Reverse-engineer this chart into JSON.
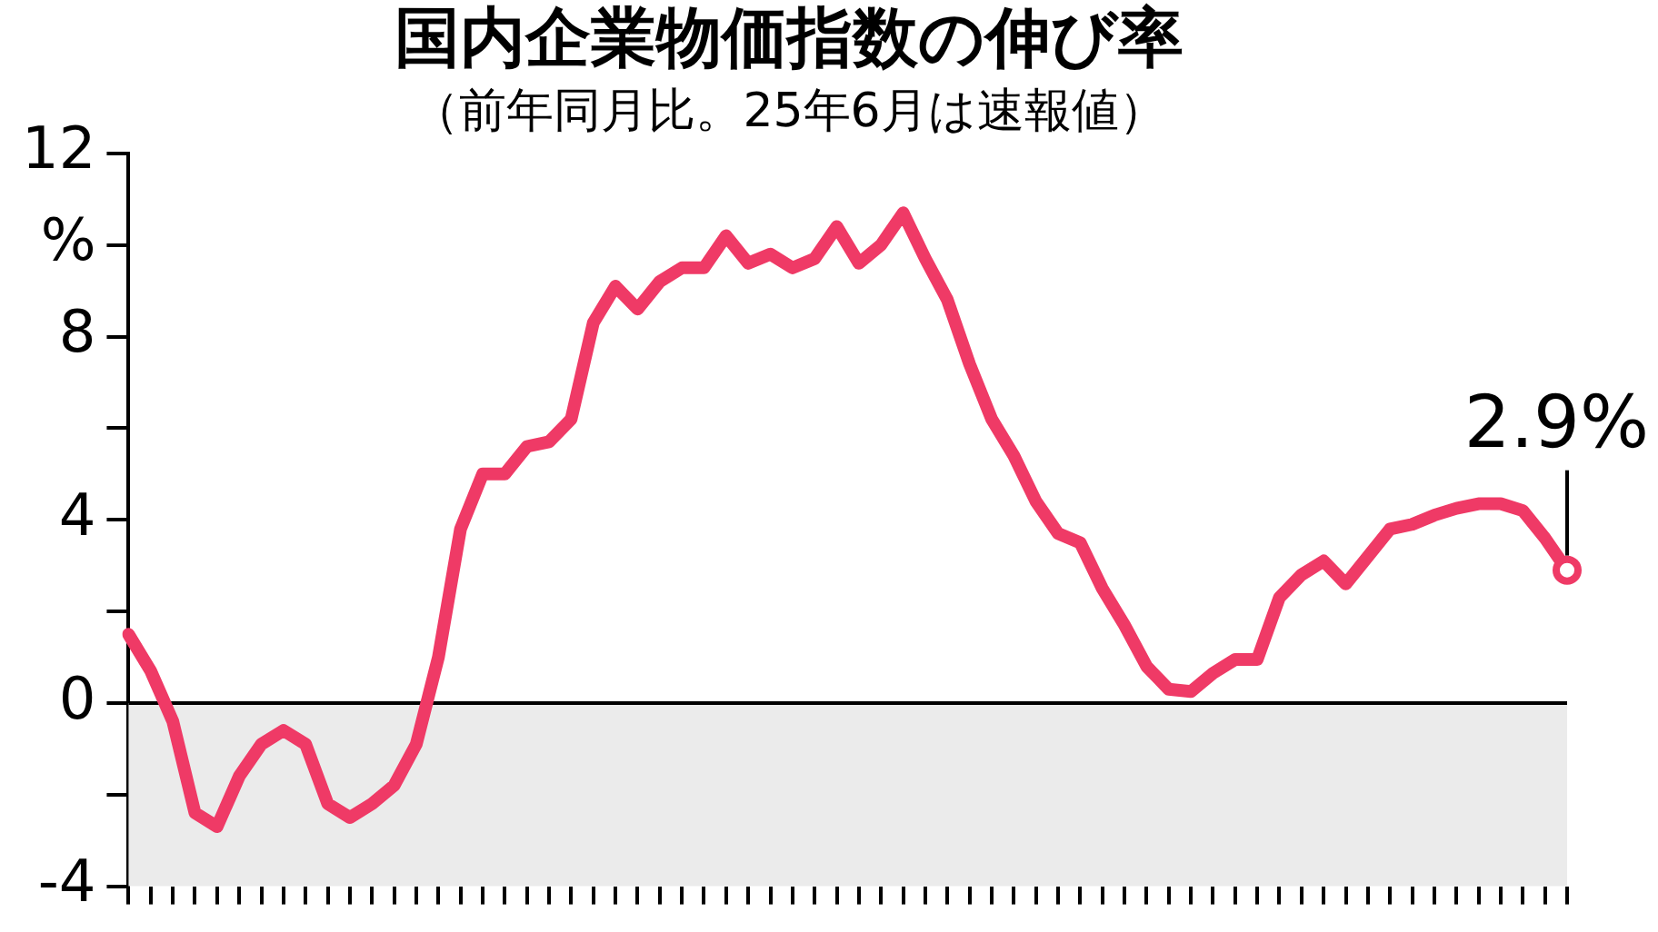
{
  "chart_data": {
    "type": "line",
    "title": "国内企業物価指数の伸び率",
    "subtitle": "（前年同月比。25年6月は速報値）",
    "categories": [
      null,
      null,
      null,
      null,
      null,
      null,
      null,
      null,
      null,
      null,
      null,
      null,
      null,
      null,
      null,
      null,
      null,
      null,
      null,
      null,
      null,
      null,
      null,
      null,
      null,
      null,
      null,
      null,
      null,
      null,
      null,
      null,
      null,
      null,
      null,
      null,
      null,
      null,
      null,
      null,
      null,
      null,
      null,
      null,
      null,
      null,
      null,
      null,
      null,
      null,
      null,
      null,
      null,
      null,
      null,
      null,
      null,
      null,
      null,
      null,
      null,
      null,
      null,
      null,
      null,
      null
    ],
    "series": [
      {
        "color": "#ef3a66",
        "values": [
          1.5,
          0.7,
          -0.4,
          -2.4,
          -2.7,
          -1.6,
          -0.9,
          -0.6,
          -0.9,
          -2.2,
          -2.5,
          -2.2,
          -1.8,
          -0.9,
          1.0,
          3.8,
          5.0,
          5.0,
          5.6,
          5.7,
          6.2,
          8.3,
          9.1,
          8.6,
          9.2,
          9.5,
          9.5,
          10.2,
          9.6,
          9.8,
          9.5,
          9.7,
          10.4,
          9.6,
          10.0,
          10.7,
          9.7,
          8.8,
          7.4,
          6.2,
          5.4,
          4.4,
          3.7,
          3.5,
          2.5,
          1.7,
          0.8,
          0.3,
          0.25,
          0.65,
          0.95,
          0.95,
          2.3,
          2.8,
          3.1,
          2.6,
          3.2,
          3.8,
          3.9,
          4.1,
          4.25,
          4.35,
          4.35,
          4.2,
          3.6,
          2.9
        ]
      }
    ],
    "ylim": [
      -4,
      12
    ],
    "yticks": [
      12,
      {
        "value": 10,
        "label": "%"
      },
      8,
      {
        "value": 6,
        "label": null
      },
      4,
      {
        "value": 2,
        "label": null
      },
      0,
      {
        "value": -2,
        "label": null
      },
      -4
    ],
    "bands": [
      {
        "axis": "y",
        "from": -4,
        "to": 0,
        "color": "#ebebeb"
      }
    ],
    "ref_lines": [
      {
        "axis": "y",
        "value": 0,
        "color": "#000000"
      }
    ],
    "annotations": [
      {
        "text": "2.9%",
        "y": 2.9
      }
    ],
    "marker": "none",
    "line_style": "solid",
    "grid": false,
    "legend": false
  }
}
